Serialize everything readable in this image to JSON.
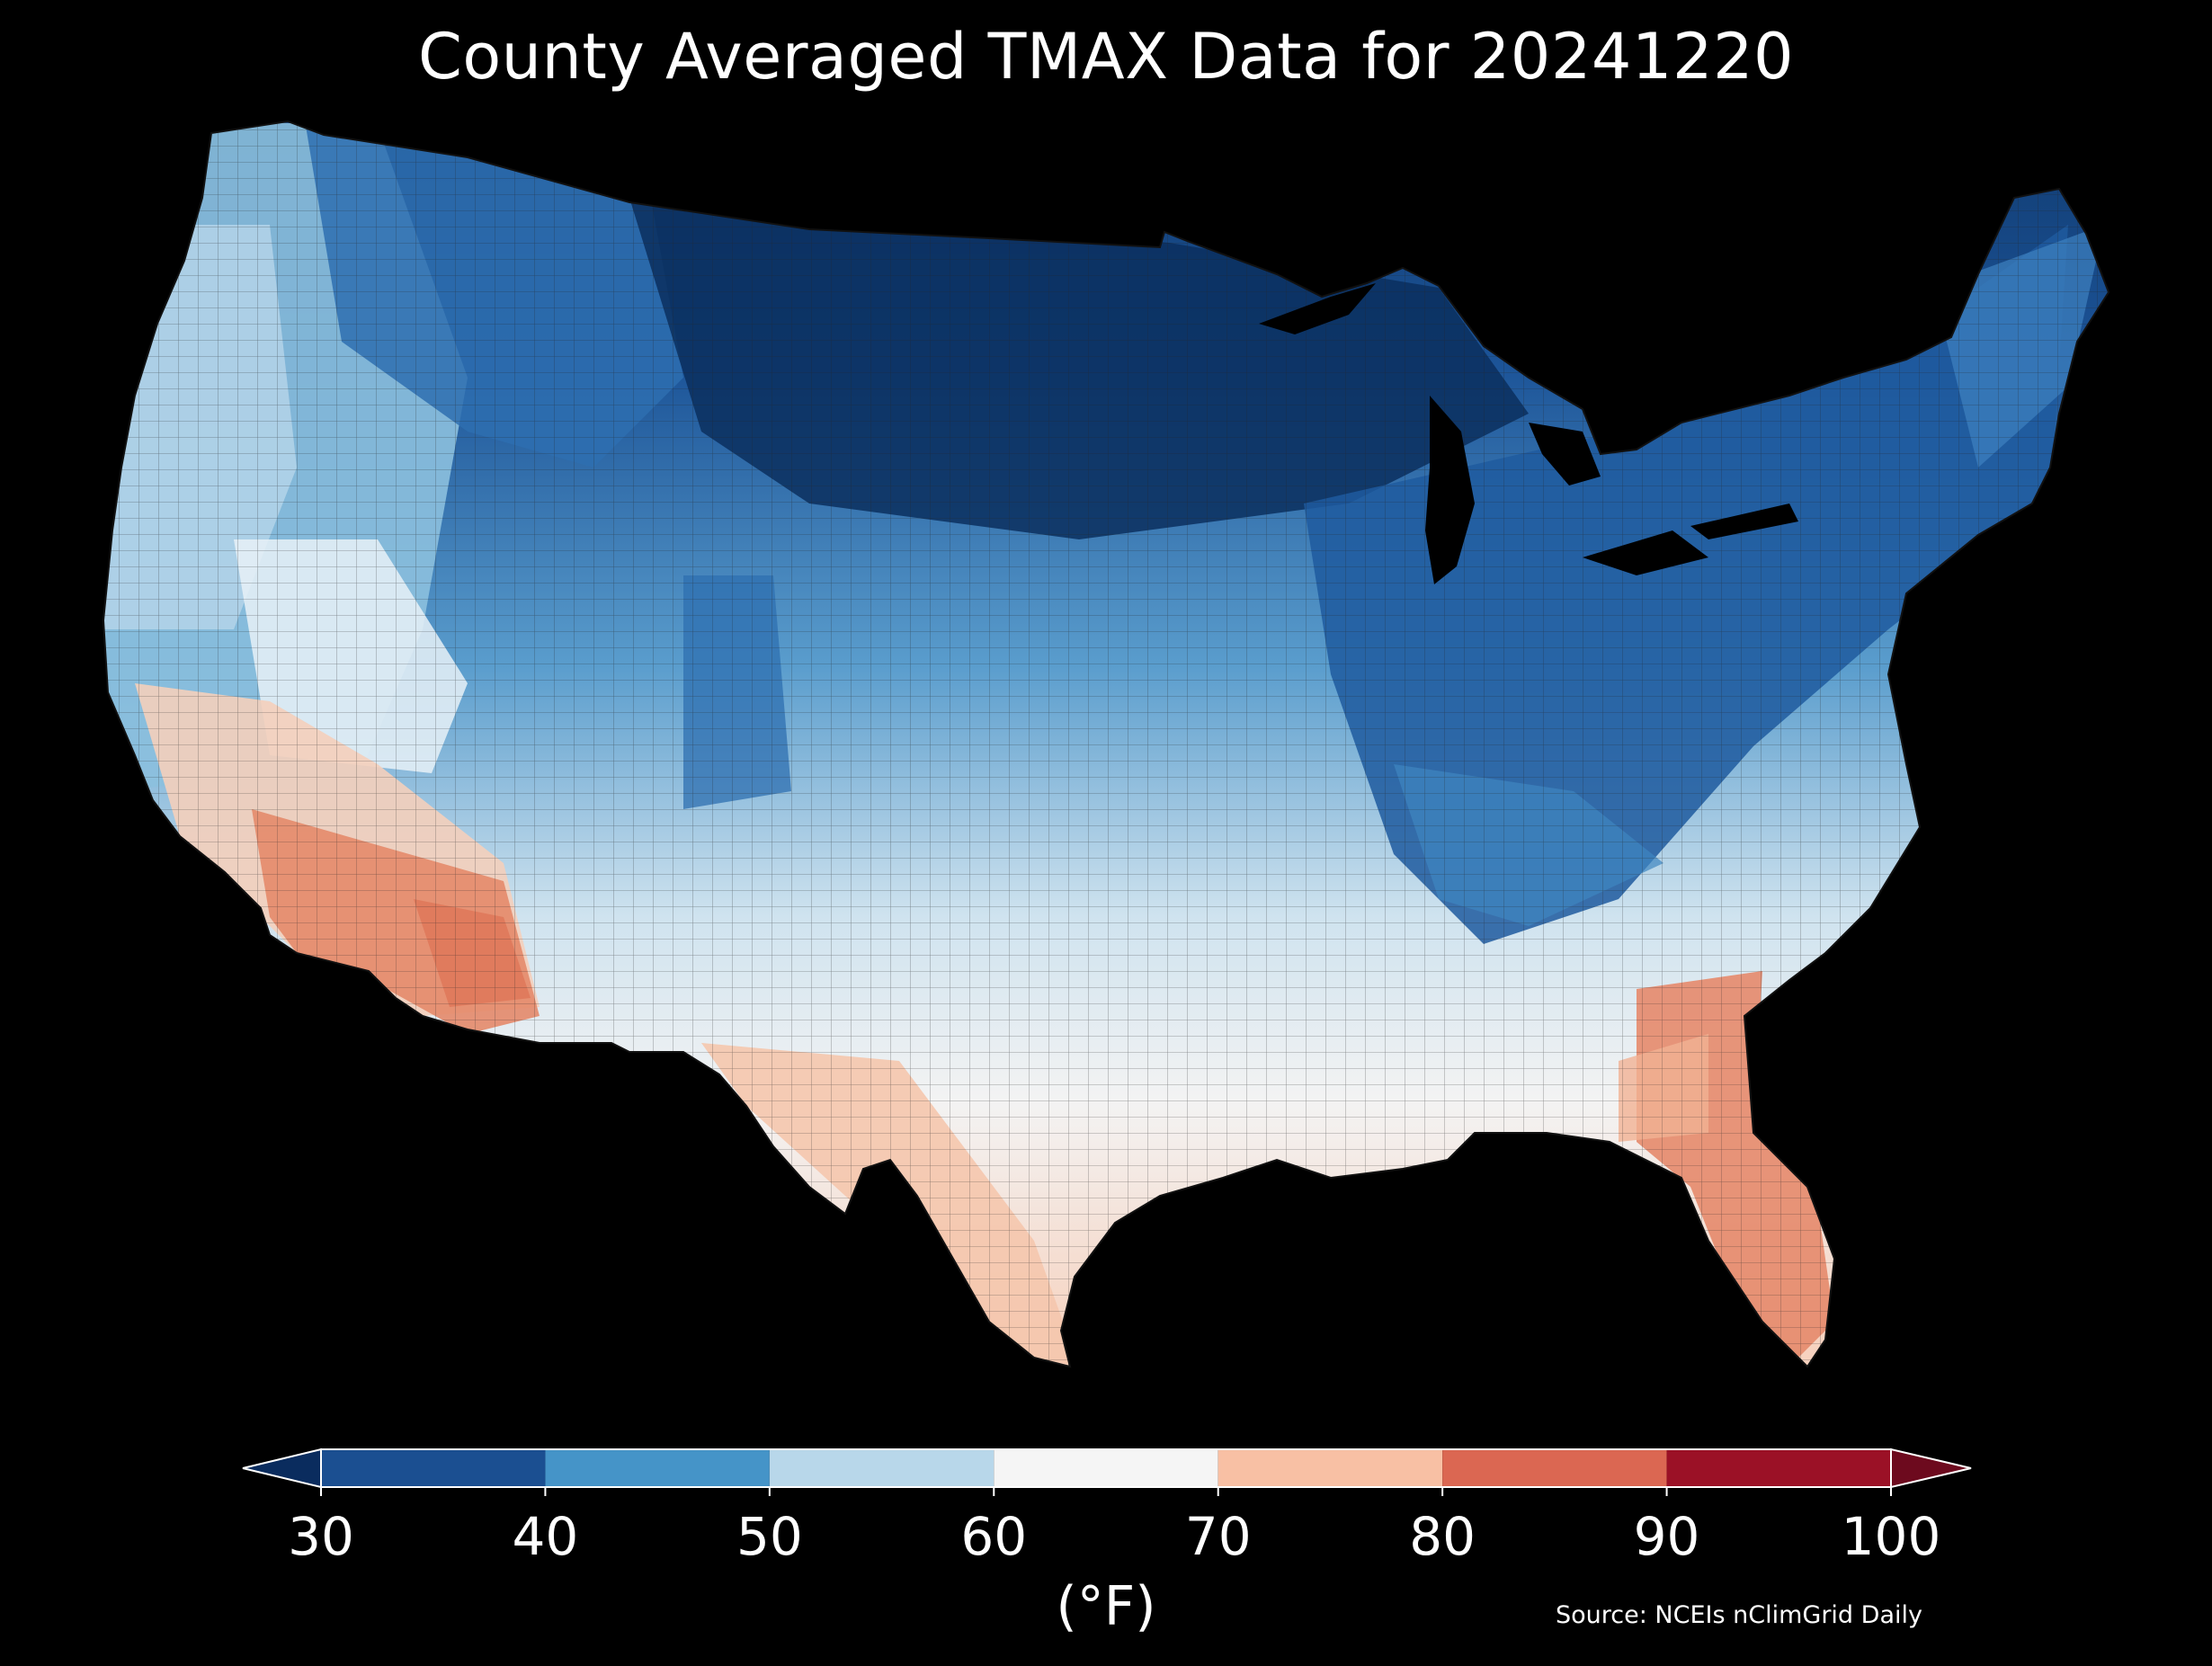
{
  "title": "County Averaged TMAX Data for 20241220",
  "colorbar": {
    "ticks": [
      "30",
      "40",
      "50",
      "60",
      "70",
      "80",
      "90",
      "100"
    ],
    "colors": [
      "#1b4f91",
      "#4594c8",
      "#b8d7ea",
      "#f5f5f5",
      "#f8c0a4",
      "#db6752",
      "#9b1126"
    ],
    "under_color": "#0a2c5e",
    "over_color": "#6d0a1e",
    "unit": "(°F)"
  },
  "source": "Source: NCEIs nClimGrid Daily",
  "map_colors": {
    "very_cold": "#0e3a6e",
    "cold": "#2b6aaf",
    "cool": "#4a90c4",
    "mild": "#8ec1de",
    "neutral_cool": "#c9e0ee",
    "neutral": "#f2f2f2",
    "warm": "#f6cdb6",
    "hot": "#e48466",
    "border": "#1a1a1a"
  }
}
